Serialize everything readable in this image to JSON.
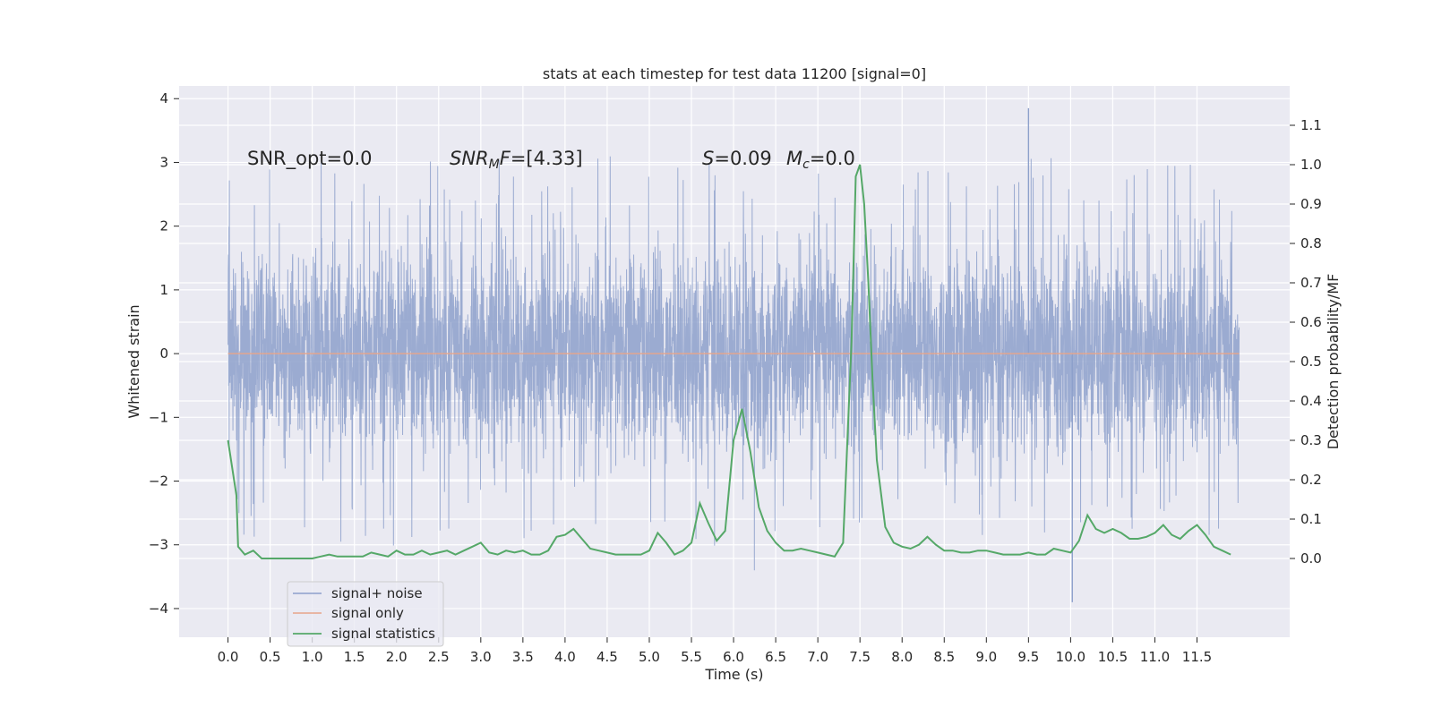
{
  "chart_data": {
    "type": "line",
    "title": "stats at each timestep for test data 11200 [signal=0]",
    "xlabel": "Time (s)",
    "ylabel": "Whitened strain",
    "ylabel_right": "Detection probability/MF",
    "xlim": [
      -0.58,
      12.6
    ],
    "ylim": [
      -4.45,
      4.2
    ],
    "ylim_right": [
      -0.2,
      1.2
    ],
    "x_ticks": [
      0.0,
      0.5,
      1.0,
      1.5,
      2.0,
      2.5,
      3.0,
      3.5,
      4.0,
      4.5,
      5.0,
      5.5,
      6.0,
      6.5,
      7.0,
      7.5,
      8.0,
      8.5,
      9.0,
      9.5,
      10.0,
      10.5,
      11.0,
      11.5
    ],
    "x_tick_labels": [
      "0.0",
      "0.5",
      "1.0",
      "1.5",
      "2.0",
      "2.5",
      "3.0",
      "3.5",
      "4.0",
      "4.5",
      "5.0",
      "5.5",
      "6.0",
      "6.5",
      "7.0",
      "7.5",
      "8.0",
      "8.5",
      "9.0",
      "9.5",
      "10.0",
      "10.5",
      "11.0",
      "11.5"
    ],
    "y_ticks": [
      -4,
      -3,
      -2,
      -1,
      0,
      1,
      2,
      3,
      4
    ],
    "y_tick_labels": [
      "−4",
      "−3",
      "−2",
      "−1",
      "0",
      "1",
      "2",
      "3",
      "4"
    ],
    "y_ticks_right": [
      0.0,
      0.1,
      0.2,
      0.3,
      0.4,
      0.5,
      0.6,
      0.7,
      0.8,
      0.9,
      1.0,
      1.1
    ],
    "y_tick_labels_right": [
      "0.0",
      "0.1",
      "0.2",
      "0.3",
      "0.4",
      "0.5",
      "0.6",
      "0.7",
      "0.8",
      "0.9",
      "1.0",
      "1.1"
    ],
    "grid": true,
    "legend_position": "lower-left",
    "annotations": [
      {
        "text": "SNR_opt=0.0",
        "x": 0.2,
        "y": 3.0
      },
      {
        "text": "SNR_MF=[4.33]",
        "x": 2.6,
        "y": 3.0
      },
      {
        "text": "S=0.09",
        "x": 5.6,
        "y": 3.0
      },
      {
        "text": "M_c=0.0",
        "x": 6.6,
        "y": 3.0
      }
    ],
    "series": [
      {
        "name": "signal+ noise",
        "axis": "left",
        "color": "#8da0cb",
        "x_start": 0.0,
        "x_end": 12.0,
        "envelope_description_free": true,
        "typical_range": [
          -1.3,
          1.2
        ],
        "peak_max": 3.85,
        "peak_max_at": 9.5,
        "trough_min": -3.9,
        "trough_min_at": 10.02
      },
      {
        "name": "signal only",
        "axis": "left",
        "color": "#e8a58a",
        "x": [
          0.0,
          12.0
        ],
        "y": [
          0.0,
          0.0
        ]
      },
      {
        "name": "signal statistics",
        "axis": "right",
        "color": "#55a868",
        "x": [
          0.0,
          0.1,
          0.12,
          0.2,
          0.3,
          0.4,
          0.5,
          0.6,
          0.7,
          0.8,
          0.9,
          1.0,
          1.1,
          1.2,
          1.3,
          1.4,
          1.5,
          1.6,
          1.7,
          1.8,
          1.9,
          2.0,
          2.1,
          2.2,
          2.3,
          2.4,
          2.5,
          2.6,
          2.7,
          2.8,
          2.9,
          3.0,
          3.1,
          3.2,
          3.3,
          3.4,
          3.5,
          3.6,
          3.7,
          3.8,
          3.9,
          4.0,
          4.1,
          4.2,
          4.3,
          4.4,
          4.5,
          4.6,
          4.7,
          4.8,
          4.9,
          5.0,
          5.1,
          5.2,
          5.3,
          5.4,
          5.5,
          5.6,
          5.7,
          5.8,
          5.9,
          6.0,
          6.1,
          6.2,
          6.3,
          6.4,
          6.5,
          6.6,
          6.7,
          6.8,
          6.9,
          7.0,
          7.1,
          7.2,
          7.3,
          7.4,
          7.45,
          7.5,
          7.55,
          7.6,
          7.65,
          7.7,
          7.8,
          7.9,
          8.0,
          8.1,
          8.2,
          8.3,
          8.4,
          8.5,
          8.6,
          8.7,
          8.8,
          8.9,
          9.0,
          9.1,
          9.2,
          9.3,
          9.4,
          9.5,
          9.6,
          9.7,
          9.8,
          9.9,
          10.0,
          10.1,
          10.2,
          10.3,
          10.4,
          10.5,
          10.6,
          10.7,
          10.8,
          10.9,
          11.0,
          11.1,
          11.2,
          11.3,
          11.4,
          11.5,
          11.6,
          11.7,
          11.8,
          11.9
        ],
        "y": [
          0.3,
          0.16,
          0.03,
          0.01,
          0.02,
          0.0,
          0.0,
          0.0,
          0.0,
          0.0,
          0.0,
          0.0,
          0.005,
          0.01,
          0.005,
          0.005,
          0.005,
          0.005,
          0.015,
          0.01,
          0.005,
          0.02,
          0.01,
          0.01,
          0.02,
          0.01,
          0.015,
          0.02,
          0.01,
          0.02,
          0.03,
          0.04,
          0.015,
          0.01,
          0.02,
          0.015,
          0.02,
          0.01,
          0.01,
          0.02,
          0.055,
          0.06,
          0.075,
          0.05,
          0.025,
          0.02,
          0.015,
          0.01,
          0.01,
          0.01,
          0.01,
          0.02,
          0.065,
          0.04,
          0.01,
          0.02,
          0.04,
          0.14,
          0.09,
          0.045,
          0.07,
          0.3,
          0.38,
          0.27,
          0.13,
          0.07,
          0.04,
          0.02,
          0.02,
          0.025,
          0.02,
          0.015,
          0.01,
          0.005,
          0.04,
          0.55,
          0.97,
          1.0,
          0.9,
          0.7,
          0.45,
          0.25,
          0.08,
          0.04,
          0.03,
          0.025,
          0.035,
          0.055,
          0.035,
          0.02,
          0.02,
          0.015,
          0.015,
          0.02,
          0.02,
          0.015,
          0.01,
          0.01,
          0.01,
          0.015,
          0.01,
          0.01,
          0.025,
          0.02,
          0.015,
          0.045,
          0.11,
          0.075,
          0.065,
          0.075,
          0.065,
          0.05,
          0.05,
          0.055,
          0.065,
          0.085,
          0.06,
          0.05,
          0.07,
          0.085,
          0.06,
          0.03,
          0.02,
          0.01
        ]
      }
    ]
  }
}
